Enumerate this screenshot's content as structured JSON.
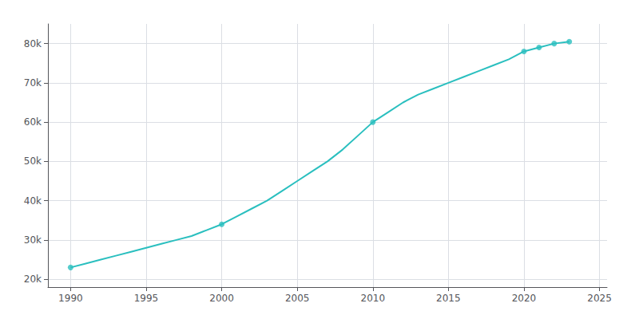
{
  "chart_data": {
    "type": "line",
    "x": [
      1990,
      1991,
      1992,
      1993,
      1994,
      1995,
      1996,
      1997,
      1998,
      1999,
      2000,
      2001,
      2002,
      2003,
      2004,
      2005,
      2006,
      2007,
      2008,
      2009,
      2010,
      2011,
      2012,
      2013,
      2014,
      2015,
      2016,
      2017,
      2018,
      2019,
      2020,
      2021,
      2022,
      2023
    ],
    "series": [
      {
        "type": "line",
        "color": "#2abfbf",
        "values": [
          23000,
          24000,
          25000,
          26000,
          27000,
          28000,
          29000,
          30000,
          31000,
          32500,
          34000,
          36000,
          38000,
          40000,
          42500,
          45000,
          47500,
          50000,
          53000,
          56500,
          60000,
          62500,
          65000,
          67000,
          68500,
          70000,
          71500,
          73000,
          74500,
          76000,
          78000,
          79000,
          80000,
          80500
        ]
      },
      {
        "type": "scatter",
        "color": "#2abfbf",
        "marker": "circle",
        "values": [
          23000,
          null,
          null,
          null,
          null,
          null,
          null,
          null,
          null,
          null,
          34000,
          null,
          null,
          null,
          null,
          null,
          null,
          null,
          null,
          null,
          60000,
          null,
          null,
          null,
          null,
          null,
          null,
          null,
          null,
          null,
          78000,
          79000,
          80000,
          80500
        ]
      }
    ],
    "xlim": [
      1988.5,
      2025.5
    ],
    "xticks": [
      1990,
      1995,
      2000,
      2005,
      2010,
      2015,
      2020,
      2025
    ],
    "ylim": [
      18000,
      85000
    ],
    "yticks": [
      {
        "value": 20000,
        "label": "20k"
      },
      {
        "value": 30000,
        "label": "30k"
      },
      {
        "value": 40000,
        "label": "40k"
      },
      {
        "value": 50000,
        "label": "50k"
      },
      {
        "value": 60000,
        "label": "60k"
      },
      {
        "value": 70000,
        "label": "70k"
      },
      {
        "value": 80000,
        "label": "80k"
      }
    ],
    "grid": true
  }
}
